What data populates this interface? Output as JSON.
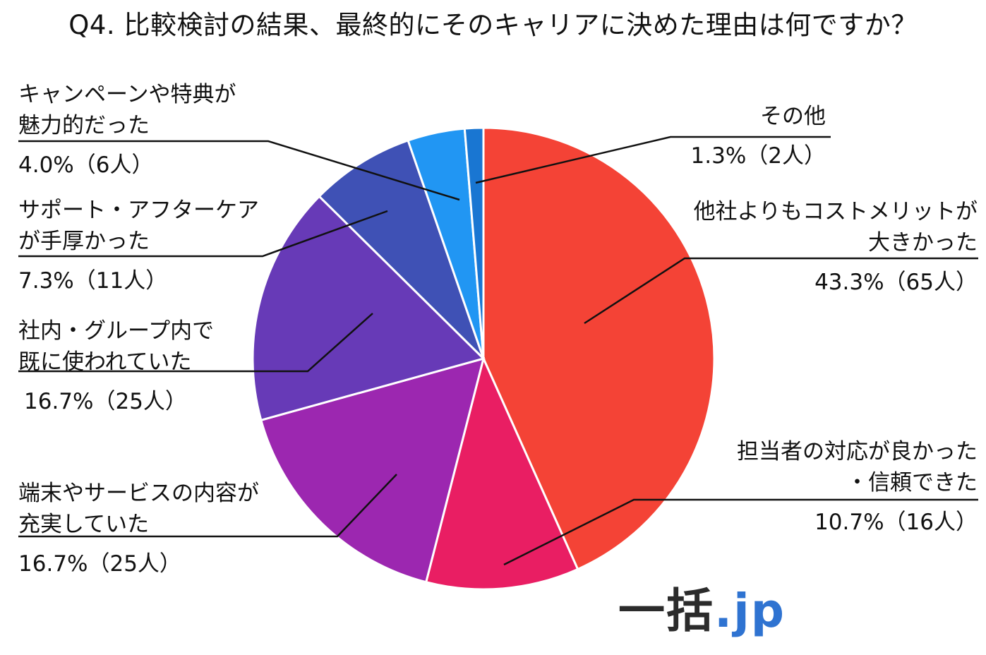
{
  "chart_data": {
    "type": "pie",
    "title": "Q4. 比較検討の結果、最終的にそのキャリアに決めた理由は何ですか？",
    "start_angle_deg": 0,
    "direction": "clockwise",
    "slices": [
      {
        "name": "他社よりもコストメリットが大きかった",
        "line1": "他社よりもコストメリットが",
        "line2": "大きかった",
        "value_label": "43.3%（65人）",
        "percent": 43.3,
        "count": 65,
        "color": "#f44336"
      },
      {
        "name": "担当者の対応が良かった・信頼できた",
        "line1": "担当者の対応が良かった",
        "line2": "・信頼できた",
        "value_label": "10.7%（16人）",
        "percent": 10.7,
        "count": 16,
        "color": "#e91e63"
      },
      {
        "name": "端末やサービスの内容が充実していた",
        "line1": "端末やサービスの内容が",
        "line2": "充実していた",
        "value_label": "16.7%（25人）",
        "percent": 16.7,
        "count": 25,
        "color": "#9c27b0"
      },
      {
        "name": "社内・グループ内で既に使われていた",
        "line1": "社内・グループ内で",
        "line2": "既に使われていた",
        "value_label": "16.7%（25人）",
        "percent": 16.7,
        "count": 25,
        "color": "#673ab7"
      },
      {
        "name": "サポート・アフターケアが手厚かった",
        "line1": "サポート・アフターケア",
        "line2": "が手厚かった",
        "value_label": "7.3%（11人）",
        "percent": 7.3,
        "count": 11,
        "color": "#3f51b5"
      },
      {
        "name": "キャンペーンや特典が魅力的だった",
        "line1": "キャンペーンや特典が",
        "line2": "魅力的だった",
        "value_label": "4.0%（6人）",
        "percent": 4.0,
        "count": 6,
        "color": "#2196f3"
      },
      {
        "name": "その他",
        "line1": "その他",
        "line2": "",
        "value_label": "1.3%（2人）",
        "percent": 1.3,
        "count": 2,
        "color": "#1976d2"
      }
    ]
  },
  "brand": {
    "prefix": "一括",
    "suffix": ".jp"
  }
}
